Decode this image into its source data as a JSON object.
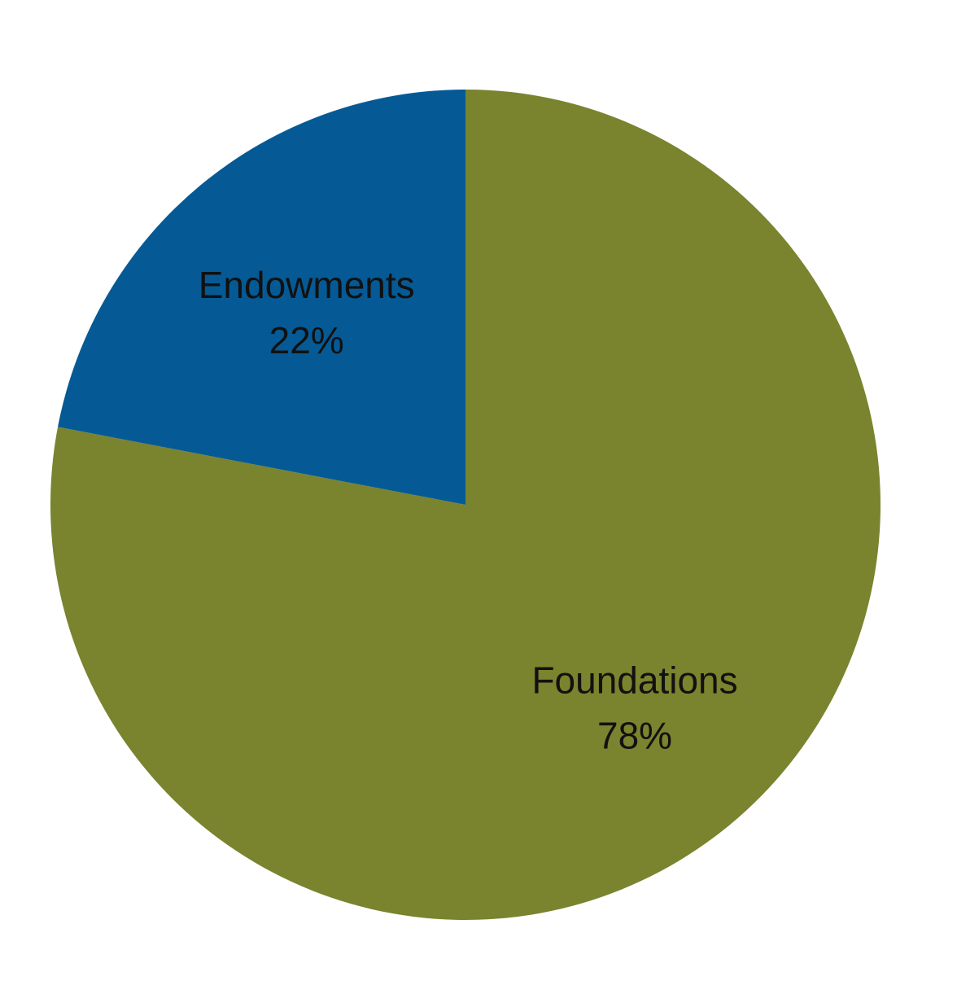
{
  "chart_data": {
    "type": "pie",
    "start": "12 o'clock",
    "direction": "clockwise",
    "categories": [
      "Foundations",
      "Endowments"
    ],
    "values": [
      78,
      22
    ],
    "value_labels": [
      "78%",
      "22%"
    ],
    "colors": [
      "#7a832e",
      "#055a95"
    ],
    "legend": "none"
  }
}
